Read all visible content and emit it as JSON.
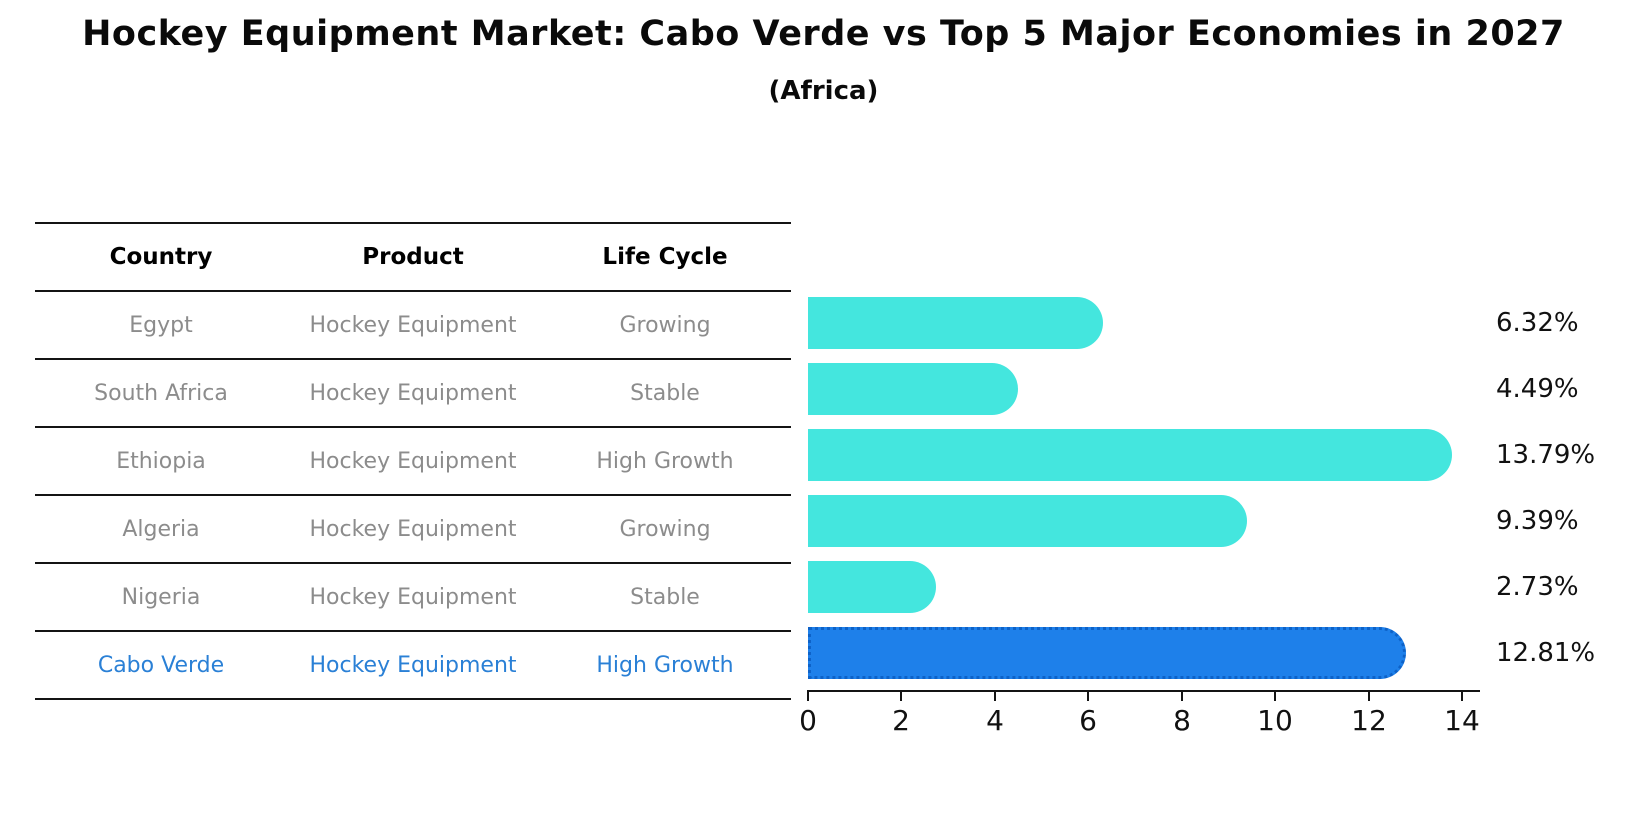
{
  "title": "Hockey Equipment Market: Cabo Verde vs Top 5 Major Economies in 2027",
  "subtitle": "(Africa)",
  "table": {
    "headers": [
      "Country",
      "Product",
      "Life Cycle"
    ],
    "rows": [
      {
        "country": "Egypt",
        "product": "Hockey Equipment",
        "life_cycle": "Growing"
      },
      {
        "country": "South Africa",
        "product": "Hockey Equipment",
        "life_cycle": "Stable"
      },
      {
        "country": "Ethiopia",
        "product": "Hockey Equipment",
        "life_cycle": "High Growth"
      },
      {
        "country": "Algeria",
        "product": "Hockey Equipment",
        "life_cycle": "Growing"
      },
      {
        "country": "Nigeria",
        "product": "Hockey Equipment",
        "life_cycle": "Stable"
      },
      {
        "country": "Cabo Verde",
        "product": "Hockey Equipment",
        "life_cycle": "High Growth"
      }
    ]
  },
  "chart_data": {
    "type": "bar",
    "orientation": "horizontal",
    "title": "Hockey Equipment Market: Cabo Verde vs Top 5 Major Economies in 2027 (Africa)",
    "categories": [
      "Egypt",
      "South Africa",
      "Ethiopia",
      "Algeria",
      "Nigeria",
      "Cabo Verde"
    ],
    "values": [
      6.32,
      4.49,
      13.79,
      9.39,
      2.73,
      12.81
    ],
    "value_labels": [
      "6.32%",
      "4.49%",
      "13.79%",
      "9.39%",
      "2.73%",
      "12.81%"
    ],
    "x_ticks": [
      "0",
      "2",
      "4",
      "6",
      "8",
      "10",
      "12",
      "14"
    ],
    "xlim": [
      0,
      14
    ],
    "grid": false,
    "legend": "none",
    "highlight_index": 5,
    "bar_color": "#44e6de",
    "highlight_fill": "#1e80ea",
    "highlight_edge": "#0d62c8",
    "row_text_color": "#8c8c8c",
    "highlight_text_color": "#2a80d6"
  }
}
